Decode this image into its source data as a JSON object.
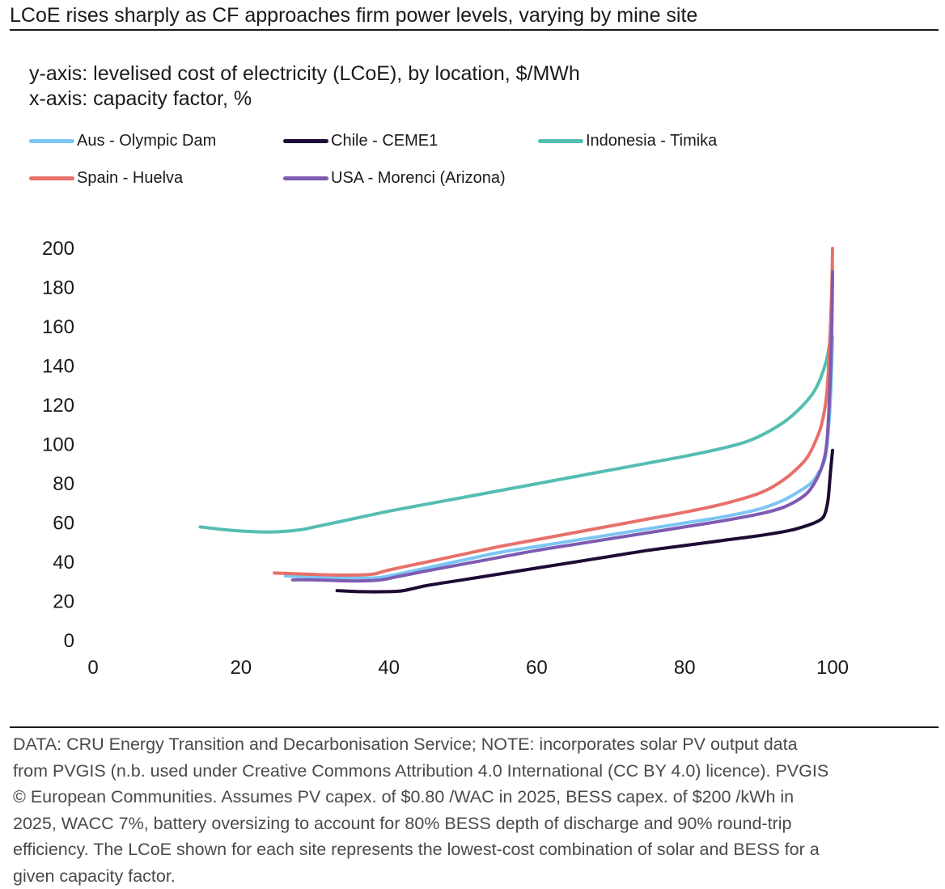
{
  "title": "LCoE rises sharply as CF approaches firm power levels, varying by mine site",
  "y_desc": "y-axis: levelised cost of electricity (LCoE), by location, $/MWh",
  "x_desc": "x-axis: capacity factor, %",
  "footer_lines": [
    "DATA: CRU Energy Transition and Decarbonisation Service; NOTE: incorporates solar PV output data",
    "from PVGIS (n.b. used under Creative Commons Attribution 4.0 International (CC BY 4.0) licence). PVGIS",
    "© European Communities. Assumes PV capex. of $0.80 /WAC in 2025, BESS capex. of $200 /kWh in",
    "2025, WACC 7%, battery oversizing to account for 80% BESS depth of discharge and 90% round-trip",
    "efficiency. The LCoE shown for each site represents the lowest-cost combination of solar and BESS for a",
    "given capacity factor."
  ],
  "chart_data": {
    "type": "line",
    "title": "LCoE rises sharply as CF approaches firm power levels, varying by mine site",
    "xlabel": "capacity factor, %",
    "ylabel": "levelised cost of electricity (LCoE), by location, $/MWh",
    "xlim": [
      0,
      100
    ],
    "ylim": [
      0,
      200
    ],
    "xticks": [
      0,
      20,
      40,
      60,
      80,
      100
    ],
    "yticks": [
      0,
      20,
      40,
      60,
      80,
      100,
      120,
      140,
      160,
      180,
      200
    ],
    "grid": false,
    "legend_position": "top",
    "series": [
      {
        "name": "Aus - Olympic Dam",
        "color": "#7cc5f4",
        "x": [
          26,
          30,
          35,
          38,
          40,
          45,
          50,
          55,
          60,
          65,
          70,
          75,
          80,
          85,
          90,
          93,
          95,
          97,
          98,
          99,
          99.5,
          99.8,
          100
        ],
        "y": [
          33,
          32.5,
          32,
          32,
          33,
          37,
          41,
          45,
          48,
          51,
          54,
          57,
          60,
          63,
          67,
          71,
          75,
          80,
          85,
          93,
          110,
          130,
          155
        ]
      },
      {
        "name": "Chile - CEME1",
        "color": "#1e0b33",
        "x": [
          33,
          36,
          40,
          42,
          45,
          50,
          55,
          60,
          65,
          70,
          75,
          80,
          85,
          90,
          94,
          96,
          97.5,
          98.5,
          99,
          99.4,
          99.7,
          100
        ],
        "y": [
          25.5,
          25,
          25,
          25.5,
          28,
          31,
          34,
          37,
          40,
          43,
          46,
          48.5,
          51,
          53.5,
          56,
          58,
          60,
          62,
          65,
          72,
          85,
          97
        ]
      },
      {
        "name": "Indonesia - Timika",
        "color": "#55bdb2",
        "x": [
          14.5,
          18,
          22,
          25,
          28,
          30,
          35,
          40,
          45,
          50,
          55,
          60,
          65,
          70,
          75,
          80,
          85,
          88,
          90,
          92,
          94,
          96,
          97.5,
          98.5,
          99.3,
          99.8,
          100
        ],
        "y": [
          58,
          56.5,
          55.5,
          55.5,
          56.5,
          58,
          62,
          66,
          69.5,
          73,
          76.5,
          80,
          83.5,
          87,
          90.5,
          94,
          98,
          101,
          104,
          108,
          113,
          120,
          127,
          135,
          145,
          160,
          190
        ]
      },
      {
        "name": "Spain - Huelva",
        "color": "#e8706a",
        "x": [
          24.5,
          28,
          32,
          36,
          38,
          40,
          45,
          50,
          55,
          60,
          65,
          70,
          75,
          80,
          85,
          90,
          93,
          95,
          96.5,
          97.5,
          98.5,
          99.2,
          99.6,
          99.9,
          100
        ],
        "y": [
          34.5,
          34,
          33.5,
          33.5,
          34,
          36,
          40,
          44,
          48,
          51.5,
          55,
          58.5,
          62,
          65.5,
          69.5,
          75,
          81,
          87,
          93,
          100,
          110,
          125,
          150,
          180,
          200
        ]
      },
      {
        "name": "USA - Morenci (Arizona)",
        "color": "#7e5bb1",
        "x": [
          27,
          30,
          34,
          37,
          39,
          41,
          45,
          50,
          55,
          60,
          65,
          70,
          75,
          80,
          85,
          90,
          93,
          95,
          96.5,
          97.5,
          98.5,
          99.2,
          99.6,
          99.9,
          100
        ],
        "y": [
          31,
          31,
          30.5,
          30.5,
          31,
          32.5,
          35.5,
          39,
          42.5,
          46,
          49,
          52,
          55,
          58,
          61,
          64.5,
          67.5,
          71,
          75,
          80,
          88,
          100,
          125,
          160,
          188
        ]
      }
    ]
  }
}
